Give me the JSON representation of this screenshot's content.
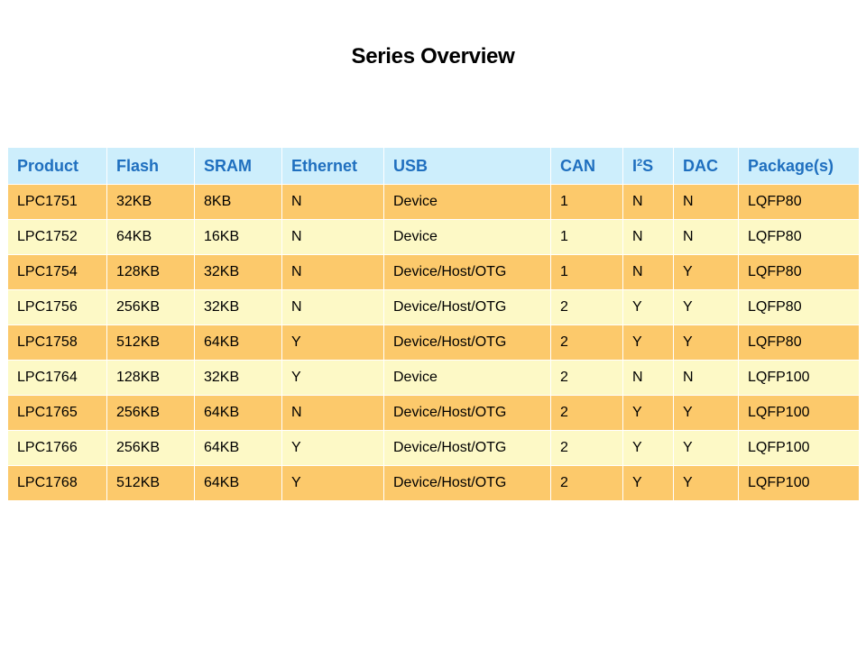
{
  "page": {
    "title": "Series Overview"
  },
  "table": {
    "headers": [
      {
        "text": "Product"
      },
      {
        "text": "Flash"
      },
      {
        "text": "SRAM"
      },
      {
        "text": "Ethernet"
      },
      {
        "text": "USB"
      },
      {
        "text": "CAN"
      },
      {
        "text": "I",
        "sup": "2",
        "rest": "S"
      },
      {
        "text": "DAC"
      },
      {
        "text": "Package(s)"
      }
    ],
    "rows": [
      [
        "LPC1751",
        "32KB",
        "8KB",
        "N",
        "Device",
        "1",
        "N",
        "N",
        "LQFP80"
      ],
      [
        "LPC1752",
        "64KB",
        "16KB",
        "N",
        "Device",
        "1",
        "N",
        "N",
        "LQFP80"
      ],
      [
        "LPC1754",
        "128KB",
        "32KB",
        "N",
        "Device/Host/OTG",
        "1",
        "N",
        "Y",
        "LQFP80"
      ],
      [
        "LPC1756",
        "256KB",
        "32KB",
        "N",
        "Device/Host/OTG",
        "2",
        "Y",
        "Y",
        "LQFP80"
      ],
      [
        "LPC1758",
        "512KB",
        "64KB",
        "Y",
        "Device/Host/OTG",
        "2",
        "Y",
        "Y",
        "LQFP80"
      ],
      [
        "LPC1764",
        "128KB",
        "32KB",
        "Y",
        "Device",
        "2",
        "N",
        "N",
        "LQFP100"
      ],
      [
        "LPC1765",
        "256KB",
        "64KB",
        "N",
        "Device/Host/OTG",
        "2",
        "Y",
        "Y",
        "LQFP100"
      ],
      [
        "LPC1766",
        "256KB",
        "64KB",
        "Y",
        "Device/Host/OTG",
        "2",
        "Y",
        "Y",
        "LQFP100"
      ],
      [
        "LPC1768",
        "512KB",
        "64KB",
        "Y",
        "Device/Host/OTG",
        "2",
        "Y",
        "Y",
        "LQFP100"
      ]
    ]
  },
  "colors": {
    "header_bg": "#cdeefc",
    "header_text": "#1f6fbf",
    "row_odd_bg": "#fcc96b",
    "row_even_bg": "#fdf9c6"
  }
}
